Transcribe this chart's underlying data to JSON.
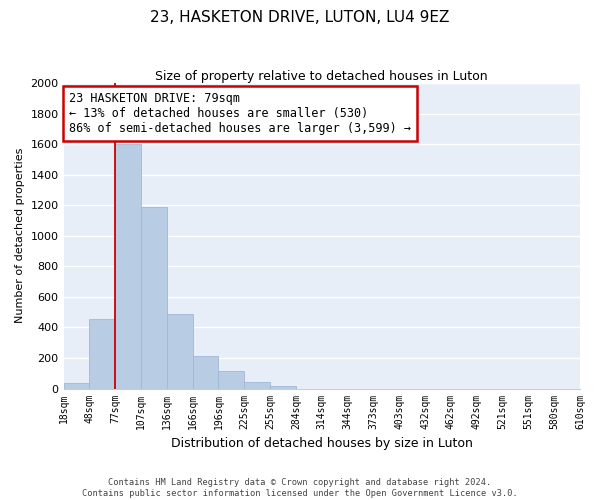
{
  "title": "23, HASKETON DRIVE, LUTON, LU4 9EZ",
  "subtitle": "Size of property relative to detached houses in Luton",
  "xlabel": "Distribution of detached houses by size in Luton",
  "ylabel": "Number of detached properties",
  "bin_labels": [
    "18sqm",
    "48sqm",
    "77sqm",
    "107sqm",
    "136sqm",
    "166sqm",
    "196sqm",
    "225sqm",
    "255sqm",
    "284sqm",
    "314sqm",
    "344sqm",
    "373sqm",
    "403sqm",
    "432sqm",
    "462sqm",
    "492sqm",
    "521sqm",
    "551sqm",
    "580sqm",
    "610sqm"
  ],
  "bar_values": [
    35,
    455,
    1600,
    1190,
    490,
    210,
    115,
    45,
    20,
    0,
    0,
    0,
    0,
    0,
    0,
    0,
    0,
    0,
    0,
    0
  ],
  "bar_color": "#b8cce4",
  "bar_edge_color": "#a0b8d8",
  "vline_color": "#cc0000",
  "vline_x_index": 2,
  "ylim": [
    0,
    2000
  ],
  "yticks": [
    0,
    200,
    400,
    600,
    800,
    1000,
    1200,
    1400,
    1600,
    1800,
    2000
  ],
  "annotation_title": "23 HASKETON DRIVE: 79sqm",
  "annotation_line1": "← 13% of detached houses are smaller (530)",
  "annotation_line2": "86% of semi-detached houses are larger (3,599) →",
  "annotation_box_color": "#ffffff",
  "annotation_box_edge": "#cc0000",
  "footer_line1": "Contains HM Land Registry data © Crown copyright and database right 2024.",
  "footer_line2": "Contains public sector information licensed under the Open Government Licence v3.0.",
  "background_color": "#e8eef8",
  "fig_background": "#ffffff"
}
